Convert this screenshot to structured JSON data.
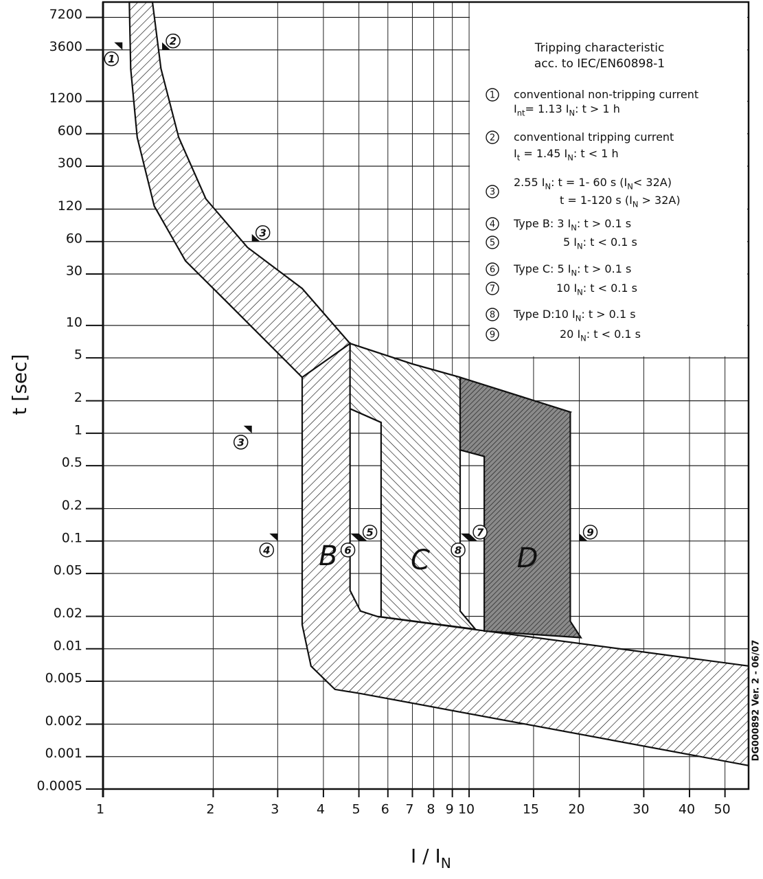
{
  "chart_data": {
    "type": "band",
    "log_x": true,
    "log_y": true,
    "grid": true,
    "xlim": [
      1,
      58
    ],
    "ylim": [
      0.0005,
      10000
    ],
    "xticks": [
      1,
      2,
      3,
      4,
      5,
      6,
      7,
      8,
      9,
      10,
      15,
      20,
      30,
      40,
      50
    ],
    "yticks": [
      0.0005,
      0.001,
      0.002,
      0.005,
      0.01,
      0.02,
      0.05,
      0.1,
      0.2,
      0.5,
      1,
      2,
      5,
      10,
      30,
      60,
      120,
      300,
      600,
      1200,
      3600,
      7200
    ],
    "x_label": [
      "I / I",
      "N"
    ],
    "y_label": "t [sec]",
    "side_note": "DG000892 Ver. 2 - 06/07",
    "title": [
      "Tripping characteristic",
      "acc. to IEC/EN60898-1"
    ],
    "series": [
      {
        "pattern": "forward",
        "x": [
          1.365,
          1.44,
          1.61,
          1.91,
          2.48,
          3.5,
          4.73,
          6.99,
          9.45,
          18.9,
          11.0,
          9.45,
          5.75,
          4.73,
          3.5,
          2.18,
          1.68,
          1.38,
          1.24,
          1.19,
          1.18
        ],
        "values": [
          10000,
          2410,
          556,
          149,
          53,
          22,
          6.8,
          4.4,
          3.3,
          1.57,
          0.61,
          0.7,
          1.26,
          1.69,
          3.3,
          16.5,
          39.7,
          128,
          556,
          2410,
          10000
        ]
      },
      {
        "name": "B",
        "pattern": "forward",
        "x": [
          3.5,
          3.5,
          3.7,
          4.3,
          5.05,
          58,
          58,
          5.63,
          5.05,
          4.73,
          4.73
        ],
        "values": [
          3.3,
          0.0167,
          0.0069,
          0.0042,
          0.00385,
          0.000826,
          0.00693,
          0.0199,
          0.0224,
          0.0348,
          6.8
        ]
      },
      {
        "name": "C",
        "pattern": "backward",
        "x": [
          4.73,
          6.99,
          9.45,
          9.45,
          10.4,
          5.75,
          5.75,
          4.73
        ],
        "values": [
          6.8,
          4.4,
          3.3,
          0.0224,
          0.0152,
          0.0198,
          1.26,
          1.69
        ]
      },
      {
        "name": "D",
        "pattern": "cross",
        "x": [
          9.45,
          18.9,
          18.9,
          20.2,
          11.0,
          11.0,
          9.45
        ],
        "values": [
          3.3,
          1.57,
          0.018,
          0.0127,
          0.0146,
          0.61,
          0.7
        ]
      }
    ],
    "markers": [
      {
        "label": "1",
        "x": 1.13,
        "y": 3600
      },
      {
        "label": "2",
        "x": 1.45,
        "y": 3600
      },
      {
        "label": "3",
        "x": 2.55,
        "y": 60
      },
      {
        "label": "3",
        "x": 2.55,
        "y": 1
      },
      {
        "label": "4",
        "x": 3,
        "y": 0.1
      },
      {
        "label": "5",
        "x": 5,
        "y": 0.1
      },
      {
        "label": "6",
        "x": 5,
        "y": 0.1
      },
      {
        "label": "7",
        "x": 10,
        "y": 0.1
      },
      {
        "label": "8",
        "x": 10,
        "y": 0.1
      },
      {
        "label": "9",
        "x": 20,
        "y": 0.1
      }
    ],
    "legend": [
      {
        "number": "1",
        "lines": [
          [
            "conventional non-tripping current"
          ],
          [
            "I",
            "nt",
            "= 1.13 I",
            "N",
            ": t > 1 h"
          ]
        ]
      },
      {
        "number": "2",
        "lines": [
          [
            "conventional tripping current"
          ],
          [
            "I",
            "t",
            " = 1.45 I",
            "N",
            ": t < 1 h"
          ]
        ]
      },
      {
        "number": "3",
        "lines": [
          [
            "2.55 I",
            "N",
            ": t = 1- 60 s (I",
            "N",
            "< 32A)"
          ],
          [
            "t = 1-120 s (I",
            "N",
            " > 32A)"
          ]
        ]
      },
      {
        "number": "4",
        "lines": [
          [
            "Type B: 3 I",
            "N",
            ": t > 0.1 s"
          ]
        ]
      },
      {
        "number": "5",
        "lines": [
          [
            "5 I",
            "N",
            ": t < 0.1 s"
          ]
        ]
      },
      {
        "number": "6",
        "lines": [
          [
            "Type C: 5 I",
            "N",
            ": t > 0.1 s"
          ]
        ]
      },
      {
        "number": "7",
        "lines": [
          [
            "10 I",
            "N",
            ": t < 0.1 s"
          ]
        ]
      },
      {
        "number": "8",
        "lines": [
          [
            "Type D:10 I",
            "N",
            ": t > 0.1 s"
          ]
        ]
      },
      {
        "number": "9",
        "lines": [
          [
            "20 I",
            "N",
            ": t < 0.1 s"
          ]
        ]
      }
    ]
  }
}
